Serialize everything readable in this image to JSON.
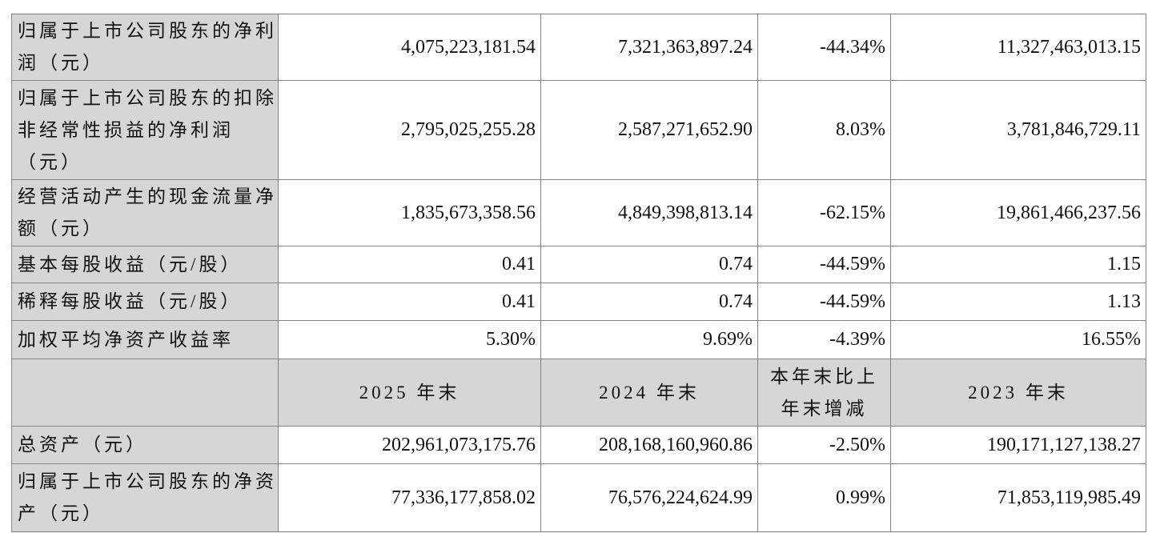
{
  "table": {
    "period_rows": [
      {
        "label": "归属于上市公司股东的净利润（元）",
        "values": [
          "4,075,223,181.54",
          "7,321,363,897.24",
          "-44.34%",
          "11,327,463,013.15"
        ]
      },
      {
        "label": "归属于上市公司股东的扣除非经常性损益的净利润（元）",
        "values": [
          "2,795,025,255.28",
          "2,587,271,652.90",
          "8.03%",
          "3,781,846,729.11"
        ]
      },
      {
        "label": "经营活动产生的现金流量净额（元）",
        "values": [
          "1,835,673,358.56",
          "4,849,398,813.14",
          "-62.15%",
          "19,861,466,237.56"
        ]
      },
      {
        "label": "基本每股收益（元/股）",
        "values": [
          "0.41",
          "0.74",
          "-44.59%",
          "1.15"
        ]
      },
      {
        "label": "稀释每股收益（元/股）",
        "values": [
          "0.41",
          "0.74",
          "-44.59%",
          "1.13"
        ]
      },
      {
        "label": "加权平均净资产收益率",
        "values": [
          "5.30%",
          "9.69%",
          "-4.39%",
          "16.55%"
        ]
      }
    ],
    "year_end_header": {
      "corner": "",
      "cols": [
        "2025 年末",
        "2024 年末",
        "本年末比上年末增减",
        "2023 年末"
      ]
    },
    "year_end_rows": [
      {
        "label": "总资产（元）",
        "values": [
          "202,961,073,175.76",
          "208,168,160,960.86",
          "-2.50%",
          "190,171,127,138.27"
        ]
      },
      {
        "label": "归属于上市公司股东的净资产（元）",
        "values": [
          "77,336,177,858.02",
          "76,576,224,624.99",
          "0.99%",
          "71,853,119,985.49"
        ]
      }
    ]
  }
}
